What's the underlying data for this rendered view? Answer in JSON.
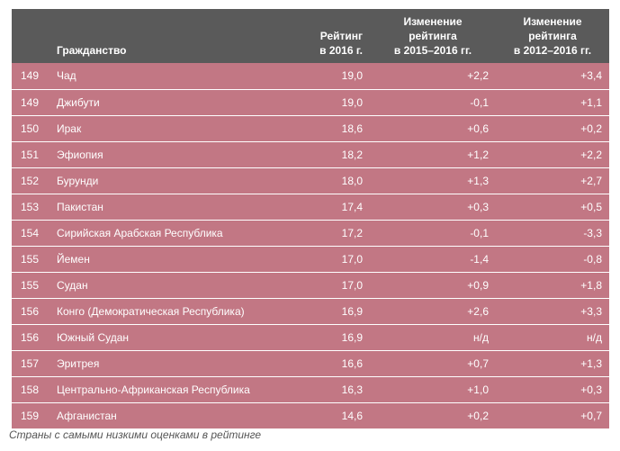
{
  "table": {
    "headers": {
      "rank": "",
      "citizenship": "Гражданство",
      "rating_2016": [
        "Рейтинг",
        "в 2016 г."
      ],
      "change_2015_2016": [
        "Изменение",
        "рейтинга",
        "в 2015–2016 гг."
      ],
      "change_2012_2016": [
        "Изменение",
        "рейтинга",
        "в 2012–2016 гг."
      ]
    },
    "rows": [
      {
        "rank": "149",
        "name": "Чад",
        "rating": "19,0",
        "d1": "+2,2",
        "d2": "+3,4"
      },
      {
        "rank": "149",
        "name": "Джибути",
        "rating": "19,0",
        "d1": "-0,1",
        "d2": "+1,1"
      },
      {
        "rank": "150",
        "name": "Ирак",
        "rating": "18,6",
        "d1": "+0,6",
        "d2": "+0,2"
      },
      {
        "rank": "151",
        "name": "Эфиопия",
        "rating": "18,2",
        "d1": "+1,2",
        "d2": "+2,2"
      },
      {
        "rank": "152",
        "name": "Бурунди",
        "rating": "18,0",
        "d1": "+1,3",
        "d2": "+2,7"
      },
      {
        "rank": "153",
        "name": "Пакистан",
        "rating": "17,4",
        "d1": "+0,3",
        "d2": "+0,5"
      },
      {
        "rank": "154",
        "name": "Сирийская Арабская Республика",
        "rating": "17,2",
        "d1": "-0,1",
        "d2": "-3,3"
      },
      {
        "rank": "155",
        "name": "Йемен",
        "rating": "17,0",
        "d1": "-1,4",
        "d2": "-0,8"
      },
      {
        "rank": "155",
        "name": "Судан",
        "rating": "17,0",
        "d1": "+0,9",
        "d2": "+1,8"
      },
      {
        "rank": "156",
        "name": "Конго (Демократическая Республика)",
        "rating": "16,9",
        "d1": "+2,6",
        "d2": "+3,3"
      },
      {
        "rank": "156",
        "name": "Южный Судан",
        "rating": "16,9",
        "d1": "н/д",
        "d2": "н/д"
      },
      {
        "rank": "157",
        "name": "Эритрея",
        "rating": "16,6",
        "d1": "+0,7",
        "d2": "+1,3"
      },
      {
        "rank": "158",
        "name": "Центрально-Африканская Республика",
        "rating": "16,3",
        "d1": "+1,0",
        "d2": "+0,3"
      },
      {
        "rank": "159",
        "name": "Афганистан",
        "rating": "14,6",
        "d1": "+0,2",
        "d2": "+0,7"
      }
    ]
  },
  "caption": "Страны с самыми низкими оценками в рейтинге",
  "colors": {
    "header_bg": "#5a5a5a",
    "row_bg": "#c27784",
    "text": "#ffffff"
  }
}
